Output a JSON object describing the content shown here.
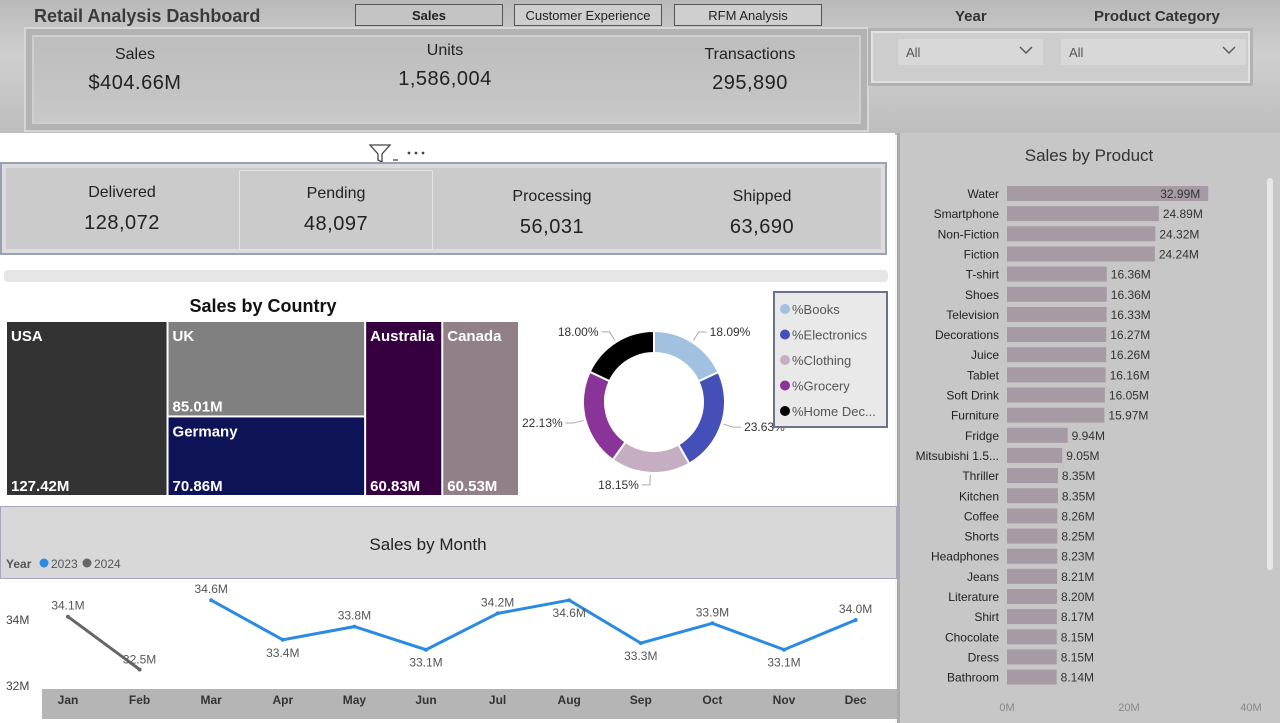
{
  "app": {
    "title": "Retail Analysis Dashboard"
  },
  "nav": {
    "sales": "Sales",
    "customer_experience": "Customer Experience",
    "rfm_analysis": "RFM Analysis"
  },
  "kpis": {
    "sales": {
      "label": "Sales",
      "value": "$404.66M"
    },
    "units": {
      "label": "Units",
      "value": "1,586,004"
    },
    "transactions": {
      "label": "Transactions",
      "value": "295,890"
    }
  },
  "filters": {
    "year": {
      "label": "Year",
      "value": "All"
    },
    "category": {
      "label": "Product Category",
      "value": "All"
    }
  },
  "status": {
    "delivered": {
      "label": "Delivered",
      "value": "128,072"
    },
    "pending": {
      "label": "Pending",
      "value": "48,097"
    },
    "processing": {
      "label": "Processing",
      "value": "56,031"
    },
    "shipped": {
      "label": "Shipped",
      "value": "63,690"
    }
  },
  "colors": {
    "line_2023": "#2b8ae2",
    "line_2024": "#666666",
    "product_bar": "#a69aa4"
  },
  "icons": {
    "filter": "funnel-icon",
    "more": "ellipsis-icon",
    "dropdown": "chevron-down-icon"
  },
  "chart_data": [
    {
      "type": "treemap",
      "title": "Sales by Country",
      "categories": [
        "USA",
        "UK",
        "Germany",
        "Australia",
        "Canada"
      ],
      "values": [
        127.42,
        85.01,
        70.86,
        60.83,
        60.53
      ],
      "value_labels": [
        "127.42M",
        "85.01M",
        "70.86M",
        "60.83M",
        "60.53M"
      ],
      "colors": [
        "#333333",
        "#808080",
        "#0d1356",
        "#360040",
        "#918088"
      ]
    },
    {
      "type": "pie",
      "variant": "donut",
      "categories": [
        "%Books",
        "%Electronics",
        "%Clothing",
        "%Grocery",
        "%Home Dec..."
      ],
      "values": [
        18.09,
        23.63,
        18.15,
        22.13,
        18.0
      ],
      "value_labels": [
        "18.09%",
        "23.63%",
        "18.15%",
        "22.13%",
        "18.00%"
      ],
      "colors": [
        "#a2c0df",
        "#4450b8",
        "#c5adc2",
        "#8a3398",
        "#000000"
      ],
      "legend": "right"
    },
    {
      "type": "bar",
      "orientation": "horizontal",
      "title": "Sales by Product",
      "categories": [
        "Water",
        "Smartphone",
        "Non-Fiction",
        "Fiction",
        "T-shirt",
        "Shoes",
        "Television",
        "Decorations",
        "Juice",
        "Tablet",
        "Soft Drink",
        "Furniture",
        "Fridge",
        "Mitsubishi 1.5...",
        "Thriller",
        "Kitchen",
        "Coffee",
        "Shorts",
        "Headphones",
        "Jeans",
        "Literature",
        "Shirt",
        "Chocolate",
        "Dress",
        "Bathroom"
      ],
      "values": [
        32.99,
        24.89,
        24.32,
        24.24,
        16.36,
        16.36,
        16.33,
        16.27,
        16.26,
        16.16,
        16.05,
        15.97,
        9.94,
        9.05,
        8.35,
        8.35,
        8.26,
        8.25,
        8.23,
        8.21,
        8.2,
        8.17,
        8.15,
        8.15,
        8.14
      ],
      "value_labels": [
        "32.99M",
        "24.89M",
        "24.32M",
        "24.24M",
        "16.36M",
        "16.36M",
        "16.33M",
        "16.27M",
        "16.26M",
        "16.16M",
        "16.05M",
        "15.97M",
        "9.94M",
        "9.05M",
        "8.35M",
        "8.35M",
        "8.26M",
        "8.25M",
        "8.23M",
        "8.21M",
        "8.20M",
        "8.17M",
        "8.15M",
        "8.15M",
        "8.14M"
      ],
      "xlim": [
        0,
        40
      ],
      "xticks": [
        "0M",
        "20M",
        "40M"
      ]
    },
    {
      "type": "line",
      "title": "Sales by Month",
      "legend_title": "Year",
      "categories": [
        "Jan",
        "Feb",
        "Mar",
        "Apr",
        "May",
        "Jun",
        "Jul",
        "Aug",
        "Sep",
        "Oct",
        "Nov",
        "Dec"
      ],
      "series": [
        {
          "name": "2023",
          "values": [
            null,
            null,
            34.6,
            33.4,
            33.8,
            33.1,
            34.2,
            34.6,
            33.3,
            33.9,
            33.1,
            34.0
          ],
          "value_labels": [
            "",
            "",
            "34.6M",
            "33.4M",
            "33.8M",
            "33.1M",
            "34.2M",
            "34.6M",
            "33.3M",
            "33.9M",
            "33.1M",
            "34.0M"
          ]
        },
        {
          "name": "2024",
          "values": [
            34.1,
            32.5,
            null,
            null,
            null,
            null,
            null,
            null,
            null,
            null,
            null,
            null
          ],
          "value_labels": [
            "34.1M",
            "32.5M",
            "",
            "",
            "",
            "",
            "",
            "",
            "",
            "",
            "",
            ""
          ]
        }
      ],
      "ylim": [
        32,
        35
      ],
      "yticks": [
        "34M",
        "32M"
      ],
      "ytick_values": [
        34,
        32
      ]
    }
  ]
}
